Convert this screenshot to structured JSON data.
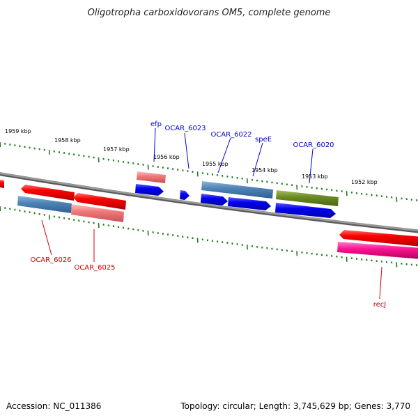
{
  "title": "Oligotropha carboxidovorans OM5, complete genome",
  "footer": {
    "accession": "Accession: NC_011386",
    "summary": "Topology: circular; Length: 3,745,629 bp; Genes: 3,770"
  },
  "colors": {
    "backbone": "#8a8a8a",
    "tick": "#1f7a1f",
    "label_forward": "#0000cc",
    "label_reverse": "#cc0000"
  },
  "kbp_labels": [
    "1959 kbp",
    "1958 kbp",
    "1957 kbp",
    "1956 kbp",
    "1955 kbp",
    "1954 kbp",
    "1953 kbp",
    "1952 kbp"
  ],
  "gene_labels": {
    "efp": "efp",
    "ocar6023": "OCAR_6023",
    "ocar6022": "OCAR_6022",
    "spee": "speE",
    "ocar6020": "OCAR_6020",
    "ocar6026": "OCAR_6026",
    "ocar6025": "OCAR_6025",
    "recj": "recJ"
  }
}
